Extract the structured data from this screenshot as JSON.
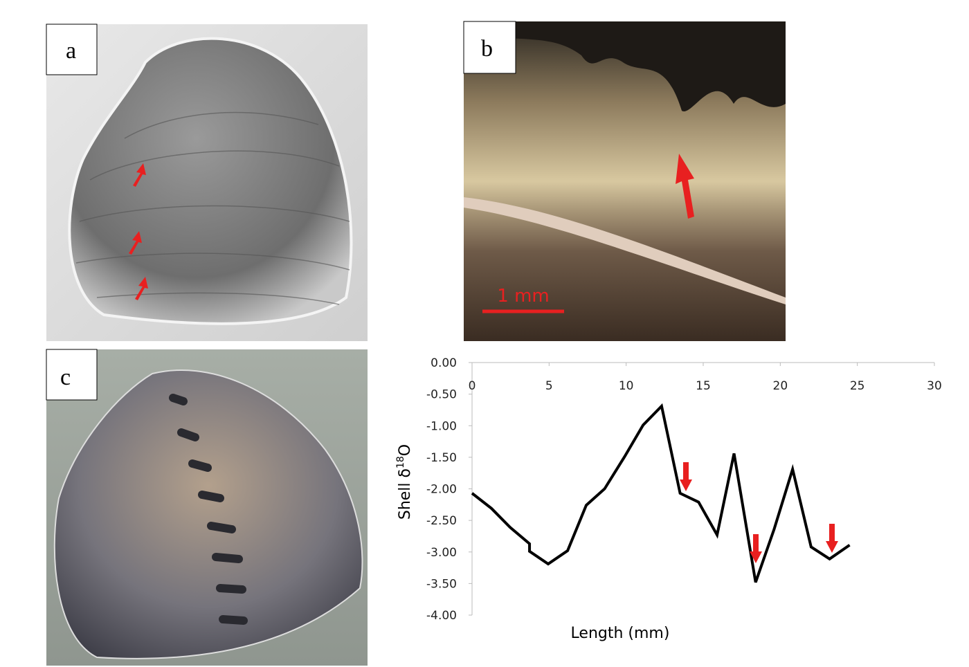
{
  "panels": {
    "a": "a",
    "b": "b",
    "c": "c",
    "scale_bar": "1 mm"
  },
  "chart_data": {
    "type": "line",
    "x": [
      0,
      1.26,
      2.47,
      3.73,
      3.73,
      4.94,
      6.2,
      7.41,
      8.6,
      9.9,
      11.1,
      12.3,
      13.5,
      14.7,
      15.9,
      17.0,
      18.4,
      19.6,
      20.8,
      22.0,
      23.2,
      24.5
    ],
    "values": [
      -2.07,
      -2.31,
      -2.61,
      -2.87,
      -2.99,
      -3.19,
      -2.98,
      -2.26,
      -2.0,
      -1.49,
      -0.99,
      -0.69,
      -2.07,
      -2.21,
      -2.73,
      -1.44,
      -3.48,
      -2.64,
      -1.69,
      -2.92,
      -3.11,
      -2.89
    ],
    "color": "#000000",
    "xlabel": "Length (mm)",
    "ylabel_parts": [
      "Shell δ",
      "18",
      "O"
    ],
    "xlim": [
      0,
      30
    ],
    "xticks": [
      0,
      5,
      10,
      15,
      20,
      25,
      30
    ],
    "ylim": [
      -4,
      0
    ],
    "yticks": [
      {
        "value": 0,
        "label": "0.00"
      },
      {
        "value": -0.5,
        "label": "-0.50"
      },
      {
        "value": -1,
        "label": "-1.00"
      },
      {
        "value": -1.5,
        "label": "-1.50"
      },
      {
        "value": -2,
        "label": "-2.00"
      },
      {
        "value": -2.5,
        "label": "-2.50"
      },
      {
        "value": -3,
        "label": "-3.00"
      },
      {
        "value": -3.5,
        "label": "-3.50"
      },
      {
        "value": -4,
        "label": "-4.00"
      }
    ]
  }
}
